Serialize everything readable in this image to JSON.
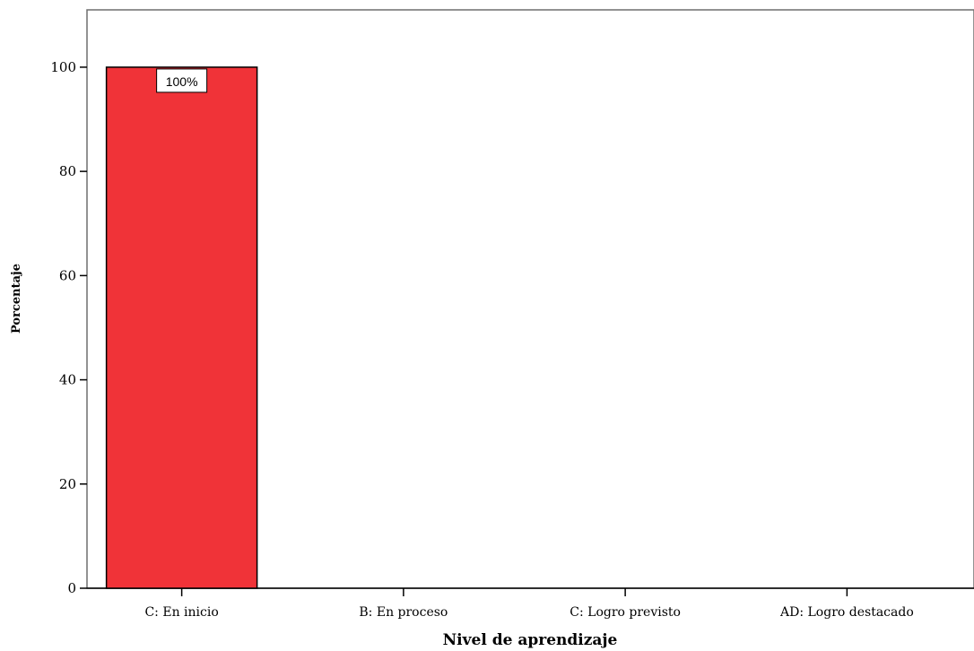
{
  "chart_data": {
    "type": "bar",
    "title": "",
    "xlabel": "Nivel de aprendizaje",
    "ylabel": "Porcentaje",
    "categories": [
      "C: En inicio",
      "B: En proceso",
      "C: Logro previsto",
      "AD: Logro destacado"
    ],
    "values": [
      100,
      0,
      0,
      0
    ],
    "data_labels": [
      "100%",
      "",
      "",
      ""
    ],
    "yticks": [
      0,
      20,
      40,
      60,
      80,
      100
    ],
    "ytick_labels": [
      "0",
      "20",
      "40",
      "60",
      "80",
      "100"
    ],
    "ylim": [
      0,
      111
    ],
    "grid": false,
    "colors": {
      "bar_fill": "#f03338",
      "bar_stroke": "#000000",
      "axis": "#000000",
      "frame": "#6e6e6e"
    }
  }
}
